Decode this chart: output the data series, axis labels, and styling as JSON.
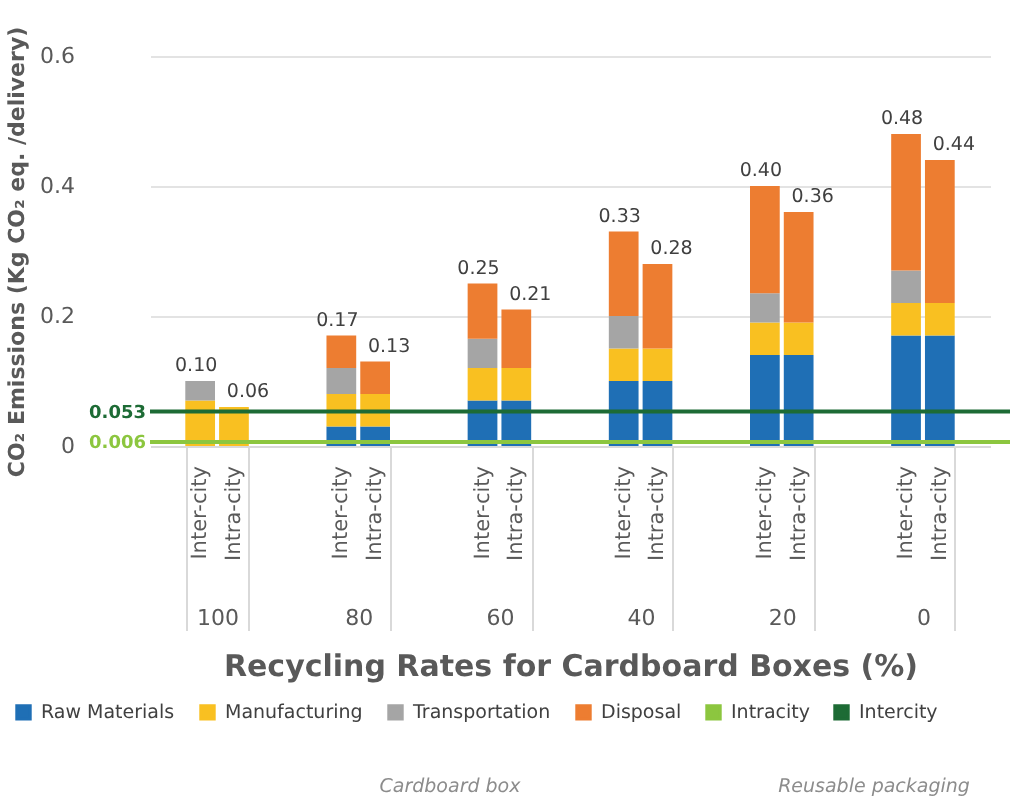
{
  "chart_data": {
    "type": "bar",
    "stacked": true,
    "xlabel": "Recycling Rates for Cardboard Boxes (%)",
    "ylabel": "CO₂ Emissions (Kg CO₂ eq. /delivery)",
    "categories": [
      "Inter-city",
      "Intra-city",
      "Inter-city",
      "Intra-city",
      "Inter-city",
      "Intra-city",
      "Inter-city",
      "Intra-city",
      "Inter-city",
      "Intra-city",
      "Inter-city",
      "Intra-city"
    ],
    "series": [
      {
        "name": "Raw Materials",
        "color": "#1f6fb5",
        "values": [
          null,
          null,
          0.03,
          0.03,
          0.07,
          0.07,
          0.1,
          0.1,
          0.14,
          0.14,
          0.17,
          0.17
        ]
      },
      {
        "name": "Manufacturing",
        "color": "#f9c021",
        "values": [
          0.07,
          0.06,
          0.05,
          0.05,
          0.05,
          0.05,
          0.05,
          0.05,
          0.05,
          0.05,
          0.05,
          0.05
        ]
      },
      {
        "name": "Transportation",
        "color": "#a5a5a5",
        "values": [
          0.03,
          null,
          0.04,
          null,
          0.045,
          null,
          0.05,
          null,
          0.045,
          null,
          0.05,
          null
        ]
      },
      {
        "name": "Disposal",
        "color": "#ed7d31",
        "values": [
          null,
          null,
          0.05,
          0.05,
          0.085,
          0.09,
          0.13,
          0.13,
          0.165,
          0.17,
          0.21,
          0.22
        ]
      }
    ],
    "totals": [
      "0.10",
      "0.06",
      "0.17",
      "0.13",
      "0.25",
      "0.21",
      "0.33",
      "0.28",
      "0.40",
      "0.36",
      "0.48",
      "0.44"
    ],
    "ref_lines": [
      {
        "axis": "y",
        "value": 0.006,
        "label": "Intracity",
        "color": "#8cc63f"
      },
      {
        "axis": "y",
        "value": 0.053,
        "label": "Intercity",
        "color": "#1d6b35"
      }
    ],
    "annotations": [
      "100",
      "80",
      "60",
      "40",
      "20",
      "0",
      "Cardboard box",
      "Reusable packaging",
      "0.006",
      "0.053"
    ],
    "ylim": [
      0,
      0.6
    ],
    "yticks": [
      {
        "value": 0,
        "label": "0"
      },
      0.2,
      0.4,
      0.6
    ],
    "grid": "y",
    "legend": "bottom"
  }
}
